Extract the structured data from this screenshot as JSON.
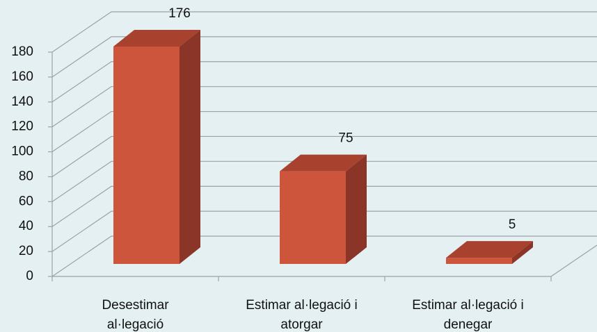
{
  "chart_data": {
    "type": "bar3d",
    "categories": [
      "Desestimar al·legació",
      "Estimar al·legació i atorgar",
      "Estimar al·legació i denegar"
    ],
    "values": [
      176,
      75,
      5
    ],
    "color": "#cd553b",
    "ylim": [
      0,
      180
    ],
    "yticks": [
      0,
      20,
      40,
      60,
      80,
      100,
      120,
      140,
      160,
      180
    ],
    "grid": true
  }
}
